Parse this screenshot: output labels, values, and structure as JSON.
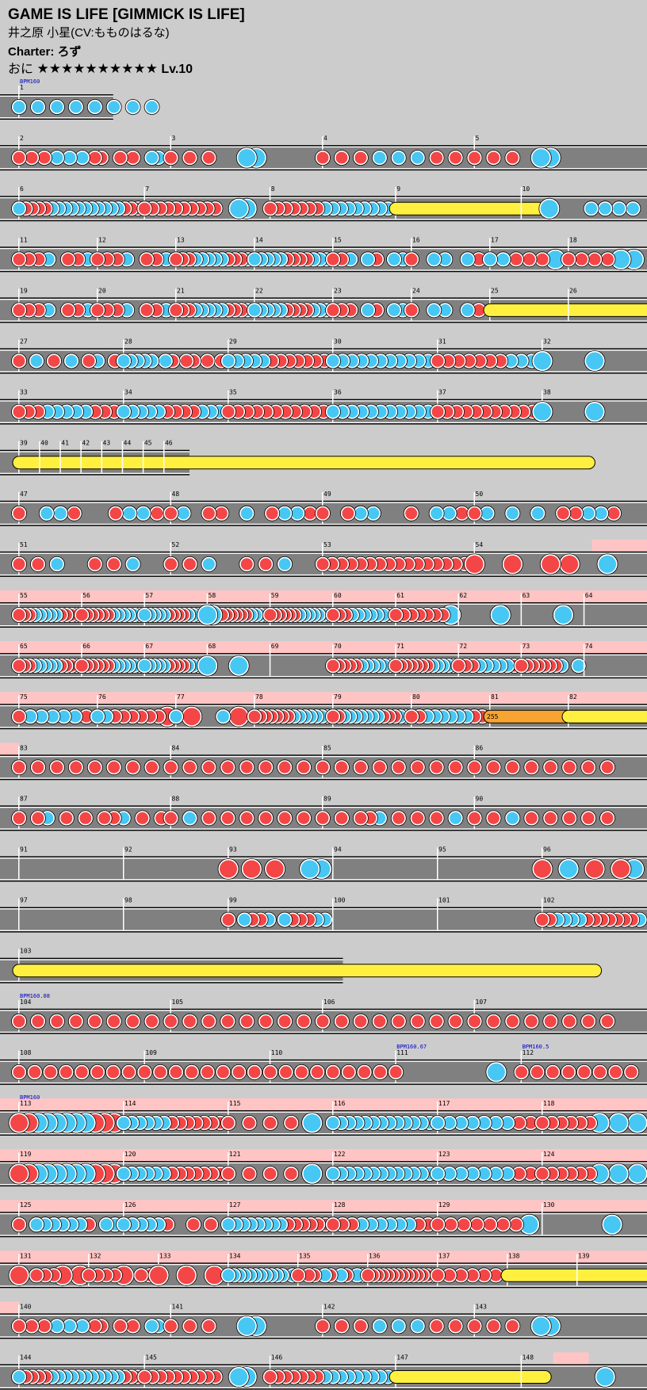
{
  "song": {
    "title": "GAME IS LIFE [GIMMICK IS LIFE]",
    "artist": "井之原 小星(CV:もものはるな)",
    "charter": "Charter: ろず",
    "course": "おに",
    "stars": "★★★★★★★★★★",
    "level": "Lv.10"
  },
  "colors": {
    "background": "#cccccc",
    "lane": "#808080",
    "don": "#f44646",
    "ka": "#47c7f4",
    "drumroll": "#fff040",
    "balloon": "#f7a432",
    "gogo": "#ffc4c4",
    "bpm_text": "#0000cc"
  },
  "legend": {
    "don_icon": "red-circle-icon",
    "ka_icon": "blue-circle-icon"
  },
  "bpm_changes": [
    {
      "measure": 1,
      "label": "BPM160"
    },
    {
      "measure": 104,
      "label": "BPM160.08"
    },
    {
      "measure": 111,
      "label": "BPM160.67"
    },
    {
      "measure": 112,
      "label": "BPM160.5"
    },
    {
      "measure": 113,
      "label": "BPM160"
    }
  ],
  "balloon": {
    "measure": 81,
    "count": "255"
  },
  "measure_numbers": [
    "1",
    "2",
    "3",
    "4",
    "5",
    "6",
    "7",
    "8",
    "9",
    "10",
    "11",
    "12",
    "13",
    "14",
    "15",
    "16",
    "17",
    "18",
    "19",
    "20",
    "21",
    "22",
    "23",
    "24",
    "25",
    "26",
    "27",
    "28",
    "29",
    "30",
    "31",
    "32",
    "33",
    "34",
    "35",
    "36",
    "37",
    "38",
    "39",
    "40",
    "41",
    "42",
    "43",
    "44",
    "45",
    "46",
    "47",
    "48",
    "49",
    "50",
    "51",
    "52",
    "53",
    "54",
    "55",
    "56",
    "57",
    "58",
    "59",
    "60",
    "61",
    "62",
    "63",
    "64",
    "65",
    "66",
    "67",
    "68",
    "69",
    "70",
    "71",
    "72",
    "73",
    "74",
    "75",
    "76",
    "77",
    "78",
    "79",
    "80",
    "81",
    "82",
    "83",
    "84",
    "85",
    "86",
    "87",
    "88",
    "89",
    "90",
    "91",
    "92",
    "93",
    "94",
    "95",
    "96",
    "97",
    "98",
    "99",
    "100",
    "101",
    "102",
    "103",
    "104",
    "105",
    "106",
    "107",
    "108",
    "109",
    "110",
    "111",
    "112",
    "113",
    "114",
    "115",
    "116",
    "117",
    "118",
    "119",
    "120",
    "121",
    "122",
    "123",
    "124",
    "125",
    "126",
    "127",
    "128",
    "129",
    "130",
    "131",
    "132",
    "133",
    "134",
    "135",
    "136",
    "137",
    "138",
    "139",
    "140",
    "141",
    "142",
    "143",
    "144",
    "145",
    "146",
    "147",
    "148"
  ],
  "rows": [
    {
      "measures": [
        {
          "n": "1",
          "notes": "kkkkkkkk",
          "bpm": "BPM160"
        }
      ],
      "lane_len": 0.175
    },
    {
      "measures": [
        {
          "n": "2",
          "notes": "d.d.d.k.k.k.dd..d.d..kk.",
          "big": [
            0
          ]
        },
        {
          "n": "3",
          "notes": "d.d.d...KK......"
        },
        {
          "n": "4",
          "notes": "d.d.d.k.k.k.d.d."
        },
        {
          "n": "5",
          "notes": "d.d.d..KK......."
        }
      ]
    },
    {
      "measures": [
        {
          "n": "6",
          "notes": "kddddkkkkkkkkkkkddd"
        },
        {
          "n": "7",
          "notes": "dddddddddd..KK.."
        },
        {
          "n": "8",
          "notes": "dddddddkkkkkkkkk"
        },
        {
          "n": "9",
          "notes": "R",
          "roll_len": 0.25
        },
        {
          "n": "10",
          "notes": "..K..kkkk"
        }
      ]
    },
    {
      "measures": [
        {
          "n": "11",
          "notes": "dddk.ddk"
        },
        {
          "n": "12",
          "notes": "dddk.ddk"
        },
        {
          "n": "13",
          "notes": "dddkkkkkdddk"
        },
        {
          "n": "14",
          "notes": "kkkkkddddkkk"
        },
        {
          "n": "15",
          "notes": "ddk.kd.kk"
        },
        {
          "n": "16",
          "notes": "d.kk.kd"
        },
        {
          "n": "17",
          "notes": "kkdddK"
        },
        {
          "n": "18",
          "notes": "ddddKK"
        }
      ]
    },
    {
      "measures": [
        {
          "n": "19",
          "notes": "dddk.ddk"
        },
        {
          "n": "20",
          "notes": "dddk.ddk"
        },
        {
          "n": "21",
          "notes": "dddkkkkkdddk"
        },
        {
          "n": "22",
          "notes": "kkkkkddddkkk"
        },
        {
          "n": "23",
          "notes": "ddd.kd.kk"
        },
        {
          "n": "24",
          "notes": "d.kk.kd"
        },
        {
          "n": "25",
          "notes": "R",
          "roll_len": 0.78
        },
        {
          "n": "26",
          "notes": ""
        }
      ]
    },
    {
      "measures": [
        {
          "n": "27",
          "notes": "d.k.d.k.dk.d"
        },
        {
          "n": "28",
          "notes": "kkkkk.kd.dd.d.d"
        },
        {
          "n": "29",
          "notes": "kkkkkddddddd"
        },
        {
          "n": "30",
          "notes": "kkkkkkkkkkk"
        },
        {
          "n": "31",
          "notes": "dddddddkkk"
        },
        {
          "n": "32",
          "notes": "KK"
        }
      ]
    },
    {
      "measures": [
        {
          "n": "33",
          "notes": "dddkkkkkddd"
        },
        {
          "n": "34",
          "notes": "kkkkkddddkkk"
        },
        {
          "n": "35",
          "notes": "ddddddddddd"
        },
        {
          "n": "36",
          "notes": "kkkkkkkkkkk"
        },
        {
          "n": "37",
          "notes": "ddddddddddd"
        },
        {
          "n": "38",
          "notes": "KK"
        }
      ]
    },
    {
      "measures": [
        {
          "n": "39",
          "notes": "R",
          "roll_len": 0.9
        },
        {
          "n": "40",
          "notes": ""
        },
        {
          "n": "41",
          "notes": ""
        },
        {
          "n": "42",
          "notes": ""
        },
        {
          "n": "43",
          "notes": ""
        },
        {
          "n": "44",
          "notes": ""
        },
        {
          "n": "45",
          "notes": ""
        },
        {
          "n": "46",
          "notes": ""
        }
      ],
      "lane_len": 0.293
    },
    {
      "measures": [
        {
          "n": "47",
          "notes": "d.kkd..dkkd"
        },
        {
          "n": "48",
          "notes": "dk.dd.k.dkkd"
        },
        {
          "n": "49",
          "notes": "d.dkk..d.kkd"
        },
        {
          "n": "50",
          "notes": "dk.k.k.ddkkd"
        }
      ]
    },
    {
      "measures": [
        {
          "n": "51",
          "notes": "d.d.k...d.d.k..."
        },
        {
          "n": "52",
          "notes": "d.d.k...d.d.k..."
        },
        {
          "n": "53",
          "notes": "dddddddddddddddd"
        },
        {
          "n": "54",
          "notes": "D.D.DD.K"
        }
      ],
      "gogo_from": 0.915
    },
    {
      "measures": [
        {
          "n": "55",
          "notes": "dddkkkkkdddk"
        },
        {
          "n": "56",
          "notes": "ddddddkkkkkk"
        },
        {
          "n": "57",
          "notes": "kkkkkddddkkkk"
        },
        {
          "n": "58",
          "notes": "KK.ddddddkkkk"
        },
        {
          "n": "59",
          "notes": "ddddddkkkkkkk"
        },
        {
          "n": "60",
          "notes": "dddkkkkkkd"
        },
        {
          "n": "61",
          "notes": "dddddddK"
        },
        {
          "n": "62",
          "notes": "..K"
        },
        {
          "n": "63",
          "notes": "..K"
        },
        {
          "n": "64",
          "notes": ""
        }
      ],
      "gogo": true
    },
    {
      "measures": [
        {
          "n": "65",
          "notes": "dddkkkkkdddk"
        },
        {
          "n": "66",
          "notes": "ddddddkkkkkk"
        },
        {
          "n": "67",
          "notes": "kkkkkddddkkkk"
        },
        {
          "n": "68",
          "notes": "KK"
        },
        {
          "n": "69",
          "notes": ""
        },
        {
          "n": "70",
          "notes": "dddddkkkkkk"
        },
        {
          "n": "71",
          "notes": "dddddddkkkkk"
        },
        {
          "n": "72",
          "notes": "dddkkkkkd"
        },
        {
          "n": "73",
          "notes": "dddddddk..k"
        },
        {
          "n": "74",
          "notes": ""
        }
      ],
      "gogo": true
    },
    {
      "measures": [
        {
          "n": "75",
          "notes": "dkkkkkd"
        },
        {
          "n": "76",
          "notes": "kkddddddD"
        },
        {
          "n": "77",
          "notes": "kD.kD"
        },
        {
          "n": "78",
          "notes": "dddddddkkkkkkd"
        },
        {
          "n": "79",
          "notes": "ddkkkkkkkdddkk"
        },
        {
          "n": "80",
          "notes": "ddkkkkkkdd"
        },
        {
          "n": "81",
          "notes": "B",
          "roll_len": 0.43,
          "balloon": "255"
        },
        {
          "n": "82",
          "notes": "R",
          "roll_len": 0.31
        }
      ],
      "gogo": true
    },
    {
      "measures": [
        {
          "n": "83",
          "notes": "d.d.d.d.d.d.d.d."
        },
        {
          "n": "84",
          "notes": "d.d.d.d.d.d.d.d."
        },
        {
          "n": "85",
          "notes": "d.d.d.d.d.d.d.d."
        },
        {
          "n": "86",
          "notes": "d.d.d.d.d.d.d.d."
        }
      ],
      "gogo_to": 0.03
    },
    {
      "measures": [
        {
          "n": "87",
          "notes": "d.dk.d.d.ddk.d.d"
        },
        {
          "n": "88",
          "notes": "d.k.d.d.d.d.d.d."
        },
        {
          "n": "89",
          "notes": "d.d.ddk.d.d.d.k."
        },
        {
          "n": "90",
          "notes": "d.d.k.d.d.d.d.d."
        }
      ]
    },
    {
      "measures": [
        {
          "n": "91",
          "notes": ""
        },
        {
          "n": "92",
          "notes": ""
        },
        {
          "n": "93",
          "notes": "D.D.D..KK"
        },
        {
          "n": "94",
          "notes": ""
        },
        {
          "n": "95",
          "notes": ""
        },
        {
          "n": "96",
          "notes": "D.K.D.DK"
        }
      ]
    },
    {
      "measures": [
        {
          "n": "97",
          "notes": ""
        },
        {
          "n": "98",
          "notes": ""
        },
        {
          "n": "99",
          "notes": "d.kddk.kdddkk"
        },
        {
          "n": "100",
          "notes": ""
        },
        {
          "n": "101",
          "notes": ""
        },
        {
          "n": "102",
          "notes": "ddkkkkdddddddk"
        }
      ]
    },
    {
      "measures": [
        {
          "n": "103",
          "notes": "R",
          "roll_len": 0.91
        }
      ],
      "lane_len": 0.53
    },
    {
      "measures": [
        {
          "n": "104",
          "notes": "d.d.d.d.d.d.d.d.",
          "bpm": "BPM160.08"
        },
        {
          "n": "105",
          "notes": "d.d.d.d.d.d.d.d."
        },
        {
          "n": "106",
          "notes": "d.d.d.d.d.d.d.d."
        },
        {
          "n": "107",
          "notes": "d.d.d.d.d.d.d.d."
        }
      ]
    },
    {
      "measures": [
        {
          "n": "108",
          "notes": "d.d.d.d.d.d.d.d."
        },
        {
          "n": "109",
          "notes": "d.d.d.d.d.d.d.d."
        },
        {
          "n": "110",
          "notes": "d.d.d.d.d.d.d.d."
        },
        {
          "n": "111",
          "notes": "d...K",
          "bpm": "BPM160.67"
        },
        {
          "n": "112",
          "notes": "dddddddd",
          "bpm": "BPM160.5"
        }
      ]
    },
    {
      "measures": [
        {
          "n": "113",
          "notes": "DDKKKKKKDDD",
          "bpm": "BPM160"
        },
        {
          "n": "114",
          "notes": "kkkkkkddddddd"
        },
        {
          "n": "115",
          "notes": "ddddK"
        },
        {
          "n": "116",
          "notes": "kkkkkkkkkkkkk"
        },
        {
          "n": "117",
          "notes": "kkkkkkkdd"
        },
        {
          "n": "118",
          "notes": "ddddddK.K.K"
        }
      ],
      "gogo": true
    },
    {
      "measures": [
        {
          "n": "119",
          "notes": "DDKKKKKKDDD"
        },
        {
          "n": "120",
          "notes": "kkkkkkddddddd"
        },
        {
          "n": "121",
          "notes": "ddddK"
        },
        {
          "n": "122",
          "notes": "kkkkkkkkkkkkk"
        },
        {
          "n": "123",
          "notes": "kkkkkkkdd"
        },
        {
          "n": "124",
          "notes": "ddddddK.K.K"
        }
      ],
      "gogo": true
    },
    {
      "measures": [
        {
          "n": "125",
          "notes": "d.kkkkkkd.kk"
        },
        {
          "n": "126",
          "notes": "kkkkkd..d.d."
        },
        {
          "n": "127",
          "notes": "kkkkkkkkdddddd"
        },
        {
          "n": "128",
          "notes": "dddkkkkkkdd"
        },
        {
          "n": "129",
          "notes": "dddddddK"
        },
        {
          "n": "130",
          "notes": "..K"
        }
      ],
      "gogo": true
    },
    {
      "measures": [
        {
          "n": "131",
          "notes": "D.dddD.D"
        },
        {
          "n": "132",
          "notes": "ddddD.dd"
        },
        {
          "n": "133",
          "notes": "D.D.D"
        },
        {
          "n": "134",
          "notes": "kkkkkkkkkkk.k"
        },
        {
          "n": "135",
          "notes": "d.dd.kd.kd.kk"
        },
        {
          "n": "136",
          "notes": "dddddddddddddd"
        },
        {
          "n": "137",
          "notes": "dddddd"
        },
        {
          "n": "138",
          "notes": "R",
          "roll_len": 0.5
        },
        {
          "n": "139",
          "notes": ""
        }
      ],
      "gogo": true
    },
    {
      "measures": [
        {
          "n": "140",
          "notes": "d.d.d.k.k.k.dd..d.d..kk."
        },
        {
          "n": "141",
          "notes": "d.d.d...KK......"
        },
        {
          "n": "142",
          "notes": "d.d.d.k.k.k.d.d."
        },
        {
          "n": "143",
          "notes": "d.d.d..KK......."
        }
      ],
      "gogo_to": 0.03
    },
    {
      "measures": [
        {
          "n": "144",
          "notes": "kddddkkkkkkkkkkkddd"
        },
        {
          "n": "145",
          "notes": "dddddddddd..KK.."
        },
        {
          "n": "146",
          "notes": "dddddddkkkkkkkkk"
        },
        {
          "n": "147",
          "notes": "R",
          "roll_len": 0.25
        },
        {
          "n": "148",
          "notes": "..K"
        }
      ],
      "gogo_box": [
        0.855,
        0.91
      ]
    }
  ]
}
